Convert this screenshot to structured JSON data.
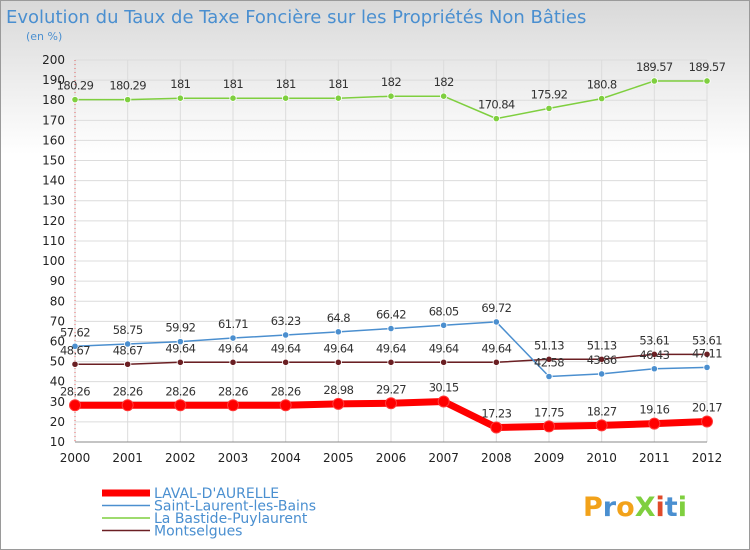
{
  "chart_data": {
    "type": "line",
    "title": "Evolution du Taux de Taxe Foncière sur les Propriétés Non Bâties",
    "subtitle": "(en %)",
    "xlabel": "",
    "ylabel": "",
    "ylim": [
      10,
      200
    ],
    "y_ticks": [
      10,
      20,
      30,
      40,
      50,
      60,
      70,
      80,
      90,
      100,
      110,
      120,
      130,
      140,
      150,
      160,
      170,
      180,
      190,
      200
    ],
    "categories": [
      "2000",
      "2001",
      "2002",
      "2003",
      "2004",
      "2005",
      "2006",
      "2007",
      "2008",
      "2009",
      "2010",
      "2011",
      "2012"
    ],
    "series": [
      {
        "name": "Montselgues",
        "color": "#6b1f23",
        "values": [
          48.67,
          48.67,
          49.64,
          49.64,
          49.64,
          49.64,
          49.64,
          49.64,
          49.64,
          51.13,
          51.13,
          53.61,
          53.61
        ],
        "labels": [
          "48.67",
          "48.67",
          "49.64",
          "49.64",
          "49.64",
          "49.64",
          "49.64",
          "49.64",
          "49.64",
          "51.13",
          "51.13",
          "53.61",
          "53.61"
        ]
      },
      {
        "name": "Saint-Laurent-les-Bains",
        "color": "#4b8fcf",
        "values": [
          57.62,
          58.75,
          59.92,
          61.71,
          63.23,
          64.8,
          66.42,
          68.05,
          69.72,
          42.58,
          43.86,
          46.43,
          47.11
        ],
        "labels": [
          "57.62",
          "58.75",
          "59.92",
          "61.71",
          "63.23",
          "64.8",
          "66.42",
          "68.05",
          "69.72",
          "42.58",
          "43.86",
          "46.43",
          "47.11"
        ]
      },
      {
        "name": "La Bastide-Puylaurent",
        "color": "#7fcf3f",
        "values": [
          180.29,
          180.29,
          181,
          181,
          181,
          181,
          182,
          182,
          170.84,
          175.92,
          180.8,
          189.57,
          189.57
        ],
        "labels": [
          "180.29",
          "180.29",
          "181",
          "181",
          "181",
          "181",
          "182",
          "182",
          "170.84",
          "175.92",
          "180.8",
          "189.57",
          "189.57"
        ]
      },
      {
        "name": "LAVAL-D'AURELLE",
        "color": "#ff0000",
        "values": [
          28.26,
          28.26,
          28.26,
          28.26,
          28.26,
          28.98,
          29.27,
          30.15,
          17.23,
          17.75,
          18.27,
          19.16,
          20.17
        ],
        "labels": [
          "28.26",
          "28.26",
          "28.26",
          "28.26",
          "28.26",
          "28.98",
          "29.27",
          "30.15",
          "17.23",
          "17.75",
          "18.27",
          "19.16",
          "20.17"
        ]
      }
    ],
    "legend": {
      "placement": "bottom-left",
      "order": [
        "LAVAL-D'AURELLE",
        "Saint-Laurent-les-Bains",
        "La Bastide-Puylaurent",
        "Montselgues"
      ]
    }
  },
  "brand": {
    "text": "ProXiti",
    "letters": [
      {
        "ch": "P",
        "color": "#f2a21a"
      },
      {
        "ch": "r",
        "color": "#4a8fd0"
      },
      {
        "ch": "o",
        "color": "#f2a21a"
      },
      {
        "ch": "X",
        "color": "#7fcf3f"
      },
      {
        "ch": "i",
        "color": "#e04a2a"
      },
      {
        "ch": "t",
        "color": "#4a8fd0"
      },
      {
        "ch": "i",
        "color": "#7fcf3f"
      }
    ]
  }
}
